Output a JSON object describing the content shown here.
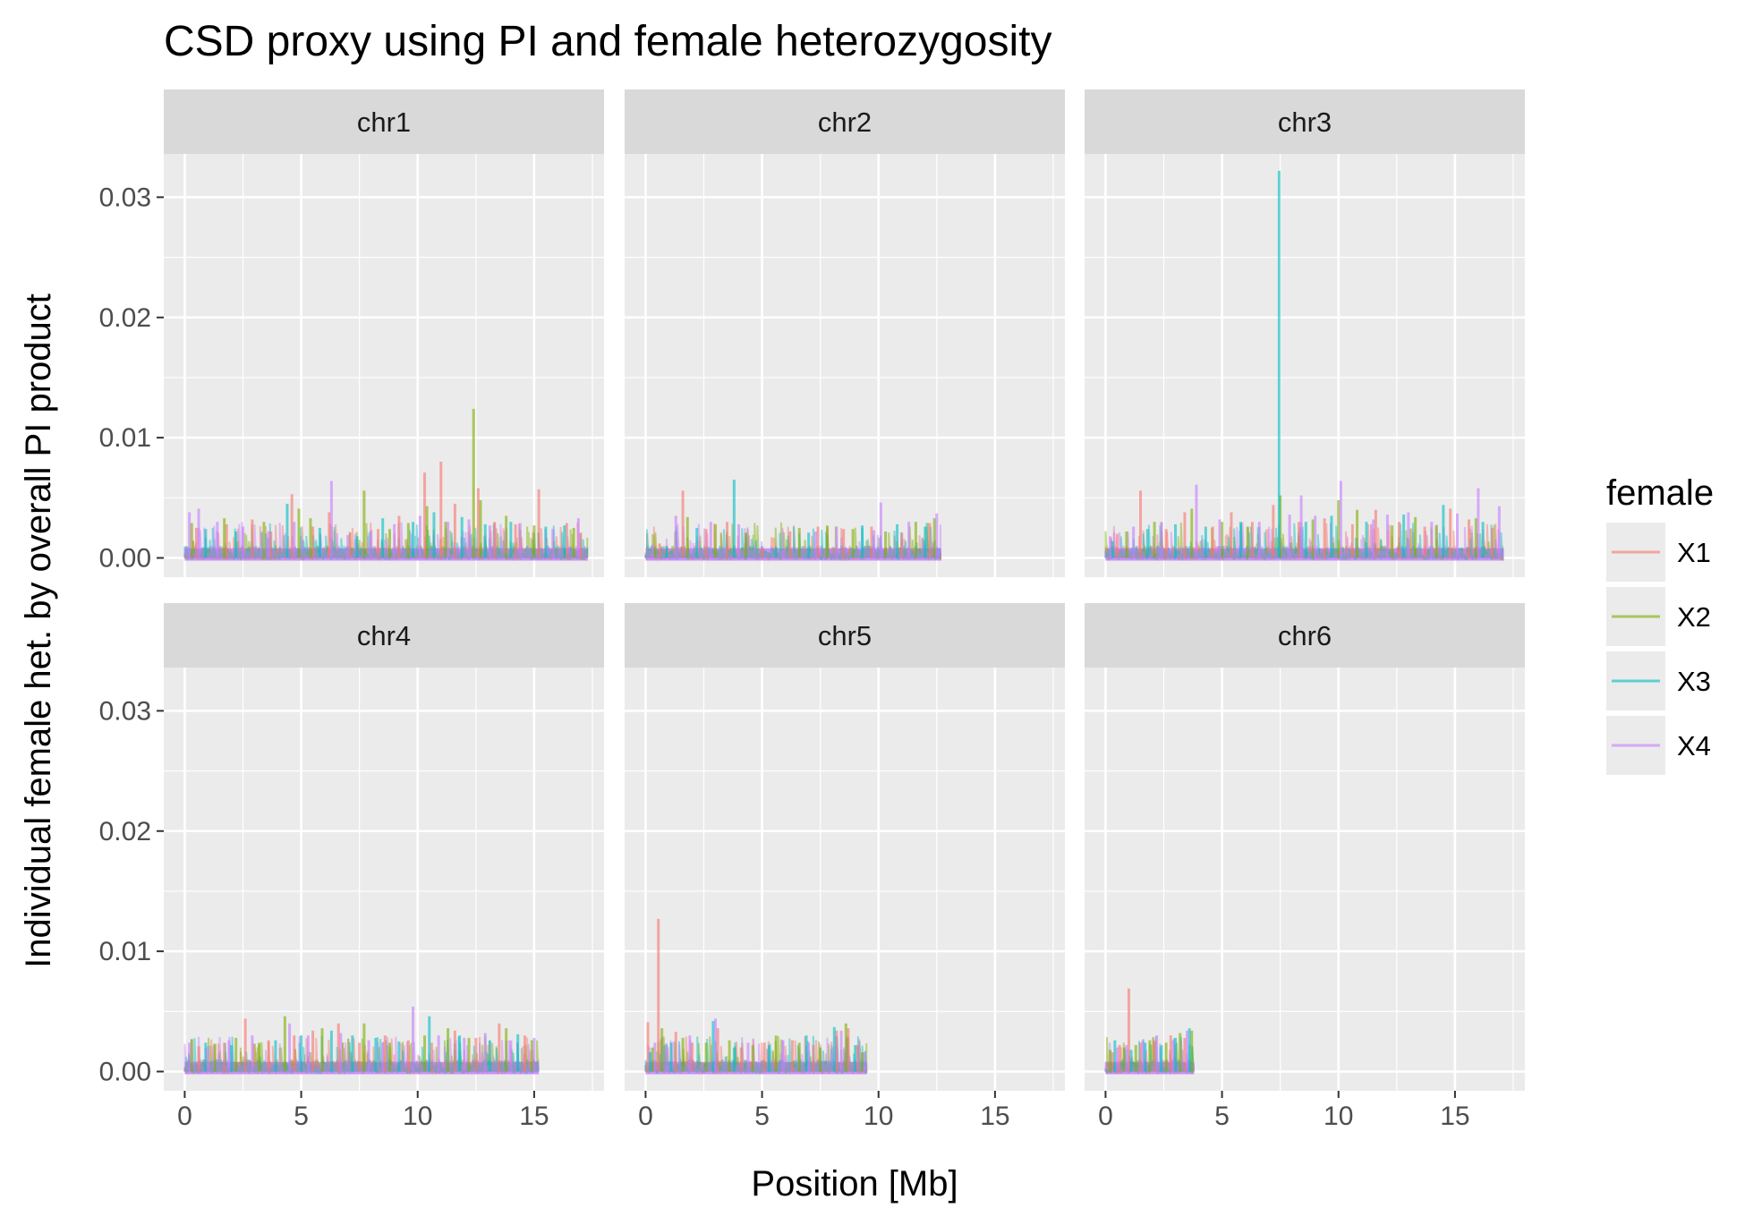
{
  "chart_data": {
    "type": "line",
    "title": "CSD proxy using PI and female heterozygosity",
    "xlabel": "Position [Mb]",
    "ylabel": "Individual female het. by overall PI product",
    "xlim": [
      -0.9,
      18.0
    ],
    "ylim": [
      -0.0016,
      0.0336
    ],
    "x_ticks": [
      0,
      5,
      10,
      15
    ],
    "y_ticks": [
      0,
      0.01,
      0.02,
      0.03
    ],
    "y_tick_labels": [
      "0.00",
      "0.01",
      "0.02",
      "0.03"
    ],
    "x_tick_labels": [
      "0",
      "5",
      "10",
      "15"
    ],
    "grid": true,
    "facet_layout": {
      "rows": 2,
      "cols": 3,
      "shared_axes": true
    },
    "legend": {
      "title": "female",
      "position": "right",
      "entries": [
        {
          "label": "X1",
          "color": "#F8766D"
        },
        {
          "label": "X2",
          "color": "#7CAE00"
        },
        {
          "label": "X3",
          "color": "#00BFC4"
        },
        {
          "label": "X4",
          "color": "#C77CFF"
        }
      ]
    },
    "panels": [
      {
        "name": "chr1",
        "x_extent": [
          0,
          17.3
        ],
        "series": [
          {
            "name": "X1",
            "x": [
              0.5,
              1.8,
              2.9,
              3.7,
              4.6,
              5.5,
              6.2,
              7.1,
              8.3,
              9.2,
              10.3,
              11.0,
              11.6,
              12.6,
              13.3,
              14.2,
              15.2,
              16.4,
              17.0
            ],
            "values": [
              0.0025,
              0.0028,
              0.0032,
              0.0022,
              0.0053,
              0.0026,
              0.0038,
              0.0021,
              0.0024,
              0.0035,
              0.0071,
              0.008,
              0.0045,
              0.0058,
              0.003,
              0.0028,
              0.0057,
              0.0029,
              0.0021
            ]
          },
          {
            "name": "X2",
            "x": [
              0.3,
              1.7,
              3.4,
              4.9,
              5.4,
              7.7,
              8.8,
              9.6,
              10.4,
              11.2,
              12.4,
              12.7,
              13.8,
              15.0,
              16.7
            ],
            "values": [
              0.0029,
              0.0033,
              0.003,
              0.0041,
              0.0033,
              0.0056,
              0.0024,
              0.0029,
              0.0043,
              0.003,
              0.0124,
              0.0048,
              0.0035,
              0.0027,
              0.0025
            ]
          },
          {
            "name": "X3",
            "x": [
              0.9,
              2.2,
              4.4,
              5.8,
              7.4,
              8.5,
              9.8,
              10.7,
              11.9,
              12.9,
              14.0,
              15.5,
              16.3
            ],
            "values": [
              0.0024,
              0.0022,
              0.0045,
              0.0025,
              0.0018,
              0.0033,
              0.003,
              0.0038,
              0.0034,
              0.0028,
              0.003,
              0.0026,
              0.0027
            ]
          },
          {
            "name": "X4",
            "x": [
              0.2,
              0.6,
              1.4,
              2.5,
              3.6,
              4.7,
              6.3,
              7.0,
              8.0,
              9.0,
              10.1,
              11.3,
              12.2,
              13.1,
              14.4,
              15.8,
              16.9
            ],
            "values": [
              0.0038,
              0.0041,
              0.003,
              0.0026,
              0.0022,
              0.003,
              0.0064,
              0.0019,
              0.0023,
              0.0028,
              0.0035,
              0.003,
              0.0032,
              0.0027,
              0.0029,
              0.0024,
              0.0033
            ]
          }
        ]
      },
      {
        "name": "chr2",
        "x_extent": [
          0,
          12.7
        ],
        "series": [
          {
            "name": "X1",
            "x": [
              0.6,
              1.6,
              2.6,
              3.5,
              5.0,
              6.2,
              7.4,
              8.5,
              9.7,
              11.0,
              12.2
            ],
            "values": [
              0.0012,
              0.0056,
              0.0024,
              0.003,
              0.0008,
              0.0022,
              0.0026,
              0.0024,
              0.0026,
              0.0021,
              0.0029
            ]
          },
          {
            "name": "X2",
            "x": [
              0.4,
              1.8,
              3.0,
              4.3,
              6.6,
              7.8,
              8.9,
              10.3,
              11.6,
              12.4
            ],
            "values": [
              0.0009,
              0.0034,
              0.0028,
              0.0021,
              0.0025,
              0.0027,
              0.0024,
              0.0022,
              0.003,
              0.0033
            ]
          },
          {
            "name": "X3",
            "x": [
              0.9,
              2.2,
              3.8,
              5.6,
              7.0,
              9.3,
              10.8,
              12.0
            ],
            "values": [
              0.001,
              0.0025,
              0.0065,
              0.0009,
              0.0021,
              0.0027,
              0.0028,
              0.0026
            ]
          },
          {
            "name": "X4",
            "x": [
              0.3,
              1.3,
              2.8,
              4.0,
              5.9,
              7.3,
              8.2,
              9.8,
              10.1,
              11.3,
              12.5
            ],
            "values": [
              0.0011,
              0.0035,
              0.003,
              0.0028,
              0.0006,
              0.0022,
              0.0026,
              0.0023,
              0.0046,
              0.003,
              0.0037
            ]
          }
        ]
      },
      {
        "name": "chr3",
        "x_extent": [
          0,
          17.1
        ],
        "series": [
          {
            "name": "X1",
            "x": [
              0.5,
              1.5,
              2.6,
              3.4,
              4.6,
              5.4,
              6.3,
              7.2,
              8.3,
              9.4,
              10.6,
              11.6,
              12.6,
              13.7,
              14.8,
              15.6,
              16.6
            ],
            "values": [
              0.002,
              0.0056,
              0.0024,
              0.0038,
              0.0026,
              0.0038,
              0.003,
              0.0044,
              0.003,
              0.0033,
              0.0028,
              0.004,
              0.003,
              0.0026,
              0.0041,
              0.0032,
              0.0025
            ]
          },
          {
            "name": "X2",
            "x": [
              0.9,
              2.1,
              3.7,
              5.0,
              6.1,
              7.5,
              8.9,
              10.0,
              10.8,
              12.3,
              13.3,
              14.2,
              15.9
            ],
            "values": [
              0.0022,
              0.003,
              0.0041,
              0.003,
              0.0026,
              0.0052,
              0.0032,
              0.0048,
              0.004,
              0.0027,
              0.0034,
              0.0027,
              0.0033
            ]
          },
          {
            "name": "X3",
            "x": [
              0.3,
              1.8,
              3.0,
              4.3,
              5.8,
              7.45,
              8.6,
              9.7,
              11.2,
              12.8,
              14.5,
              16.2
            ],
            "values": [
              0.0014,
              0.0024,
              0.0028,
              0.0026,
              0.003,
              0.0322,
              0.003,
              0.0035,
              0.003,
              0.0036,
              0.0044,
              0.003
            ]
          },
          {
            "name": "X4",
            "x": [
              0.2,
              1.2,
              2.4,
              3.9,
              4.9,
              6.6,
              7.9,
              8.4,
              9.0,
              10.1,
              11.5,
              12.1,
              13.0,
              14.0,
              15.1,
              16.0,
              16.9
            ],
            "values": [
              0.0018,
              0.0026,
              0.003,
              0.0061,
              0.0032,
              0.003,
              0.0036,
              0.0052,
              0.0035,
              0.0064,
              0.0032,
              0.0036,
              0.0038,
              0.003,
              0.0037,
              0.0058,
              0.0043
            ]
          }
        ]
      },
      {
        "name": "chr4",
        "x_extent": [
          0,
          15.2
        ],
        "series": [
          {
            "name": "X1",
            "x": [
              0.6,
              1.7,
              2.6,
              3.6,
              4.7,
              5.5,
              6.6,
              7.5,
              8.6,
              9.6,
              10.6,
              11.6,
              12.5,
              13.5,
              14.6
            ],
            "values": [
              0.0021,
              0.0024,
              0.0044,
              0.0026,
              0.003,
              0.0034,
              0.004,
              0.0024,
              0.003,
              0.0026,
              0.0024,
              0.0034,
              0.0028,
              0.004,
              0.003
            ]
          },
          {
            "name": "X2",
            "x": [
              0.3,
              1.3,
              2.2,
              3.2,
              4.3,
              5.9,
              7.7,
              8.8,
              10.3,
              11.3,
              12.2,
              13.8,
              14.9
            ],
            "values": [
              0.0027,
              0.0023,
              0.0028,
              0.0024,
              0.0046,
              0.0036,
              0.004,
              0.0024,
              0.003,
              0.0036,
              0.0028,
              0.0036,
              0.0026
            ]
          },
          {
            "name": "X3",
            "x": [
              0.9,
              2.0,
              3.9,
              5.0,
              6.3,
              7.2,
              8.2,
              9.2,
              10.5,
              11.8,
              13.1,
              14.3
            ],
            "values": [
              0.0024,
              0.0022,
              0.0026,
              0.003,
              0.0034,
              0.003,
              0.0028,
              0.0025,
              0.0046,
              0.003,
              0.0026,
              0.0031
            ]
          },
          {
            "name": "X4",
            "x": [
              0.2,
              1.0,
              1.9,
              2.9,
              4.5,
              5.3,
              6.7,
              7.9,
              8.5,
              9.8,
              10.9,
              12.0,
              12.9,
              14.0,
              15.0
            ],
            "values": [
              0.0024,
              0.0021,
              0.0026,
              0.003,
              0.004,
              0.003,
              0.0032,
              0.0026,
              0.0024,
              0.0054,
              0.003,
              0.0028,
              0.0032,
              0.0026,
              0.0028
            ]
          }
        ]
      },
      {
        "name": "chr5",
        "x_extent": [
          0,
          9.5
        ],
        "series": [
          {
            "name": "X1",
            "x": [
              0.1,
              0.55,
              1.3,
              2.0,
              3.1,
              4.1,
              5.1,
              6.3,
              7.2,
              8.2,
              8.7,
              9.1
            ],
            "values": [
              0.0041,
              0.0127,
              0.0033,
              0.0024,
              0.0036,
              0.002,
              0.0024,
              0.0026,
              0.0022,
              0.0034,
              0.0036,
              0.0022
            ]
          },
          {
            "name": "X2",
            "x": [
              0.3,
              0.7,
              1.6,
              2.6,
              3.6,
              4.6,
              5.6,
              6.6,
              7.5,
              8.6,
              9.3
            ],
            "values": [
              0.002,
              0.0036,
              0.0028,
              0.0024,
              0.0026,
              0.0022,
              0.003,
              0.0024,
              0.002,
              0.004,
              0.0016
            ]
          },
          {
            "name": "X3",
            "x": [
              0.2,
              1.1,
              2.9,
              3.8,
              5.3,
              6.9,
              8.1,
              9.0
            ],
            "values": [
              0.0016,
              0.0024,
              0.0042,
              0.002,
              0.0022,
              0.003,
              0.0037,
              0.0022
            ]
          },
          {
            "name": "X4",
            "x": [
              0.4,
              0.9,
              1.9,
              3.0,
              4.4,
              5.9,
              7.0,
              8.4,
              9.4
            ],
            "values": [
              0.0024,
              0.0022,
              0.003,
              0.0044,
              0.0024,
              0.0026,
              0.0024,
              0.0034,
              0.0016
            ]
          }
        ]
      },
      {
        "name": "chr6",
        "x_extent": [
          0,
          3.8
        ],
        "series": [
          {
            "name": "X1",
            "x": [
              0.3,
              0.6,
              1.0,
              1.5,
              2.1,
              2.8,
              3.4
            ],
            "values": [
              0.0016,
              0.0022,
              0.0069,
              0.0024,
              0.0026,
              0.003,
              0.0028
            ]
          },
          {
            "name": "X2",
            "x": [
              0.2,
              0.8,
              1.3,
              1.9,
              2.6,
              3.2,
              3.7
            ],
            "values": [
              0.0018,
              0.002,
              0.0022,
              0.0026,
              0.0024,
              0.0032,
              0.0034
            ]
          },
          {
            "name": "X3",
            "x": [
              0.4,
              1.1,
              1.7,
              2.4,
              3.0,
              3.6
            ],
            "values": [
              0.0026,
              0.0018,
              0.0024,
              0.0022,
              0.0028,
              0.0036
            ]
          },
          {
            "name": "X4",
            "x": [
              0.5,
              0.9,
              1.6,
              2.2,
              2.9,
              3.5
            ],
            "values": [
              0.002,
              0.0022,
              0.0026,
              0.003,
              0.0026,
              0.0034
            ]
          }
        ]
      }
    ]
  }
}
